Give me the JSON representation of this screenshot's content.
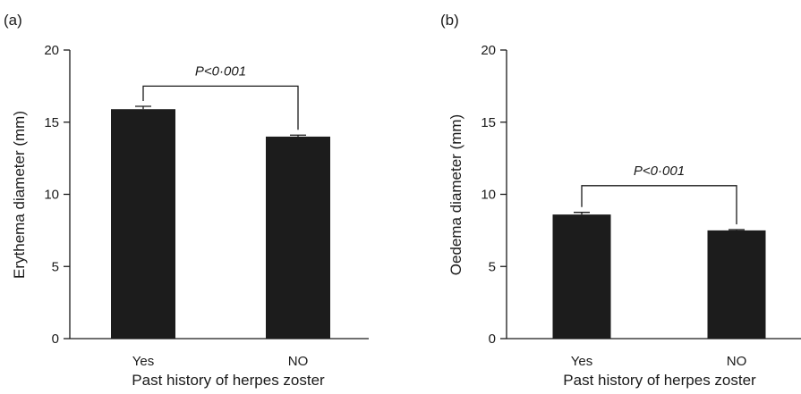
{
  "colors": {
    "bar": "#1c1c1c",
    "axis": "#1a1a1a",
    "background": "#ffffff"
  },
  "chart_data": [
    {
      "type": "bar",
      "panel_label": "(a)",
      "categories": [
        "Yes",
        "NO"
      ],
      "values": [
        15.9,
        14.0
      ],
      "error": [
        0.2,
        0.1
      ],
      "xlabel": "Past history of herpes zoster",
      "ylabel": "Erythema diameter (mm)",
      "ylim": [
        0,
        20
      ],
      "yticks": [
        0,
        5,
        10,
        15,
        20
      ],
      "ytick_labels": [
        "0",
        "5",
        "10",
        "15",
        "20"
      ],
      "significance": {
        "label": "P<0·001",
        "bracket_y": 17.5
      },
      "grid": false
    },
    {
      "type": "bar",
      "panel_label": "(b)",
      "categories": [
        "Yes",
        "NO"
      ],
      "values": [
        8.6,
        7.5
      ],
      "error": [
        0.15,
        0.05
      ],
      "xlabel": "Past history of herpes zoster",
      "ylabel": "Oedema diameter (mm)",
      "ylim": [
        0,
        20
      ],
      "yticks": [
        0,
        5,
        10,
        15,
        20
      ],
      "ytick_labels": [
        "0",
        "5",
        "10",
        "15",
        "20"
      ],
      "significance": {
        "label": "P<0·001",
        "bracket_y": 10.6
      },
      "grid": false
    }
  ]
}
